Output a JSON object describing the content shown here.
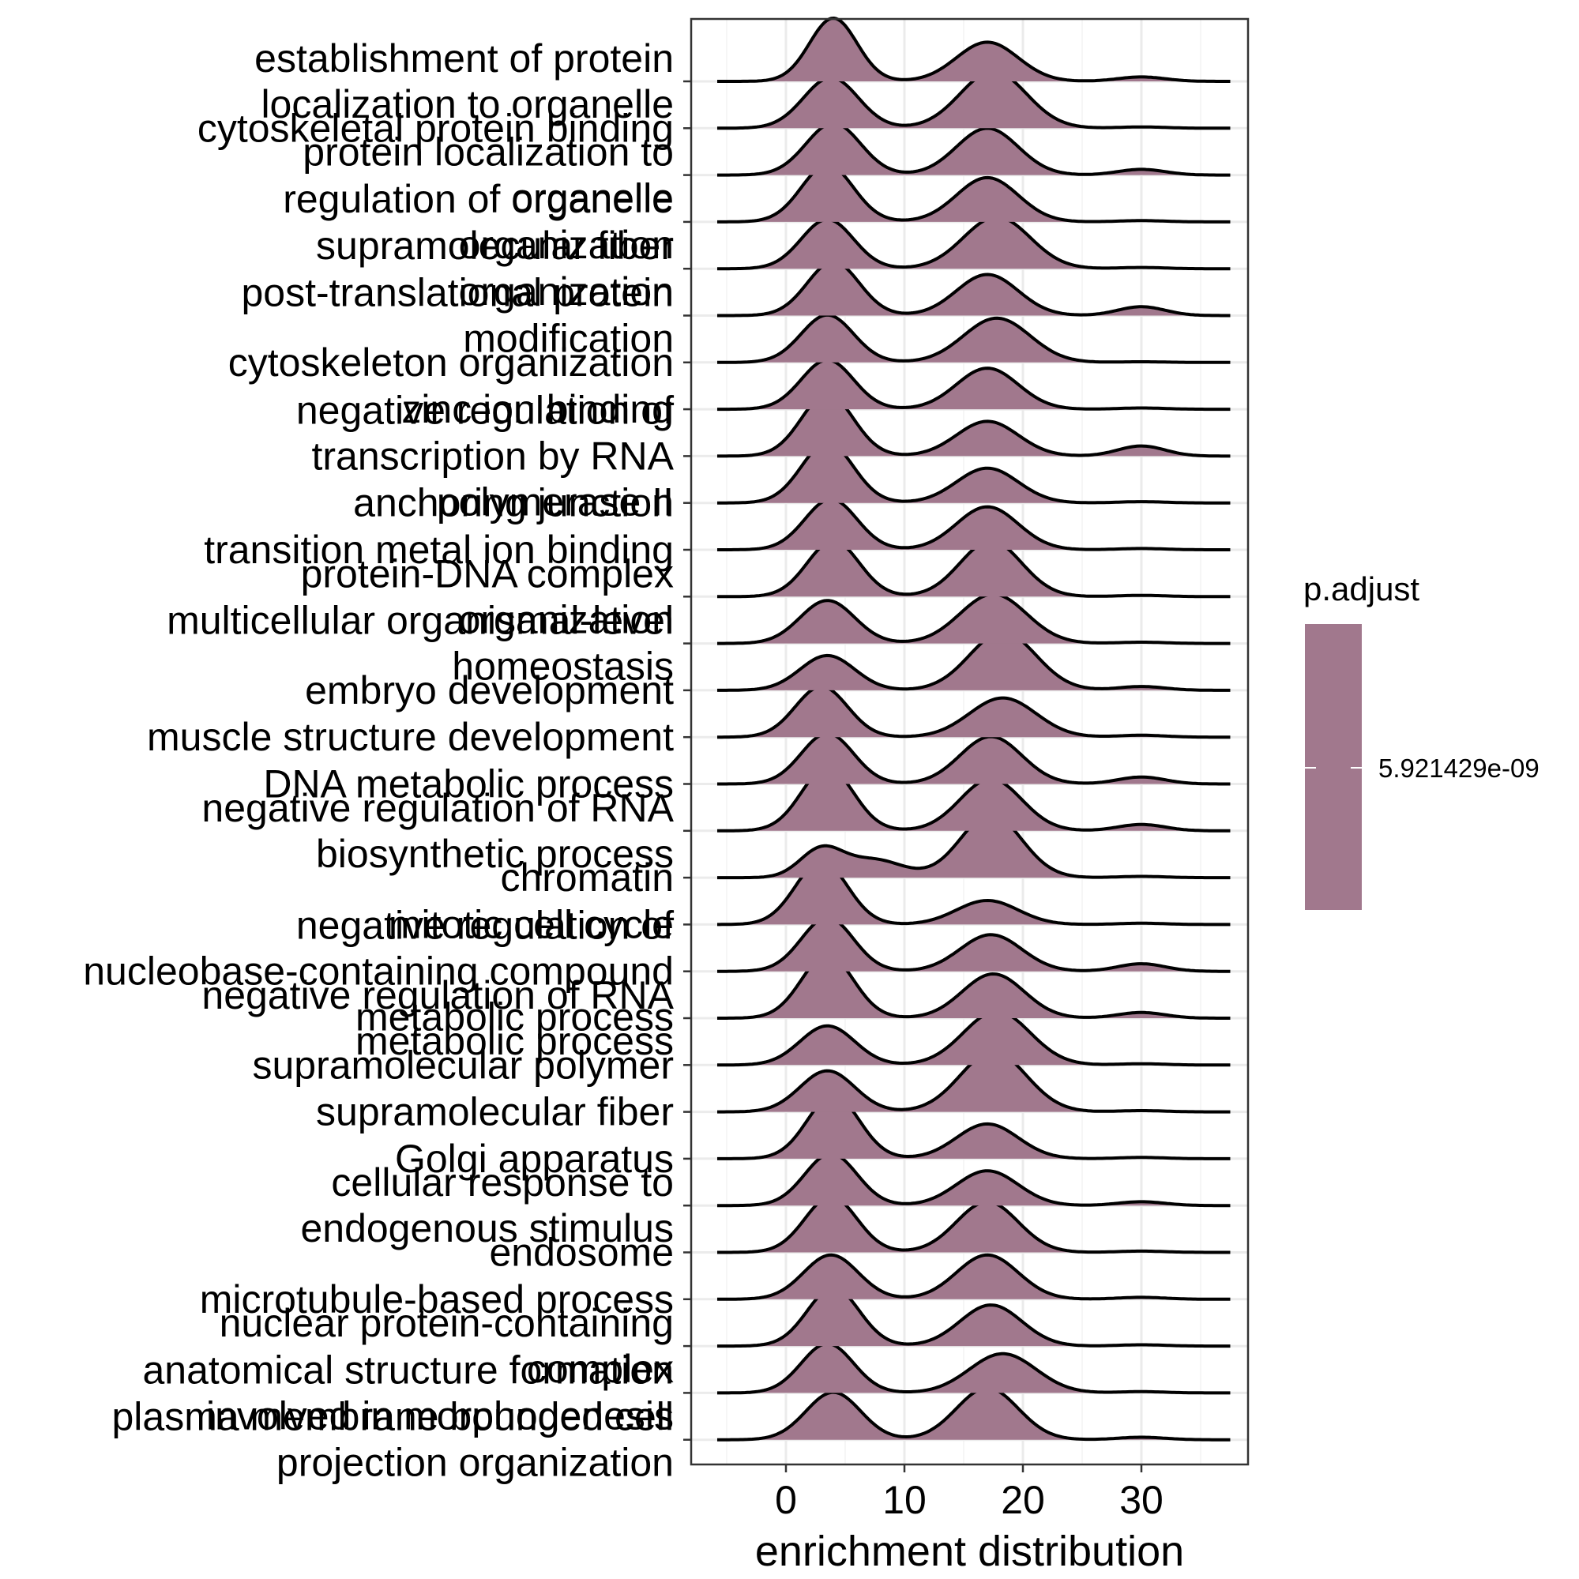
{
  "chart_data": {
    "type": "ridgeline",
    "title": "",
    "xlabel": "enrichment distribution",
    "ylabel": "",
    "xlim": [
      -8,
      39
    ],
    "xticks": [
      0,
      10,
      20,
      30
    ],
    "grid": true,
    "fill_color": "#a1788d",
    "categories": [
      "establishment of protein localization to organelle",
      "cytoskeletal protein binding",
      "protein localization to organelle",
      "regulation of organelle organization",
      "supramolecular fiber organization",
      "post-translational protein modification",
      "cytoskeleton organization",
      "zinc ion binding",
      "negative regulation of transcription by RNA polymerase II",
      "anchoring junction",
      "transition metal ion binding",
      "protein-DNA complex organization",
      "multicellular organismal-level homeostasis",
      "embryo development",
      "muscle structure development",
      "DNA metabolic process",
      "negative regulation of RNA biosynthetic process",
      "chromatin",
      "mitotic cell cycle",
      "negative regulation of nucleobase-containing compound metabolic process",
      "negative regulation of RNA metabolic process",
      "supramolecular polymer",
      "supramolecular fiber",
      "Golgi apparatus",
      "cellular response to endogenous stimulus",
      "endosome",
      "microtubule-based process",
      "nuclear protein-containing complex",
      "anatomical structure formation involved in morphogenesis",
      "plasma membrane bounded cell projection organization"
    ],
    "series": [
      {
        "peaks": [
          [
            4.0,
            2.0,
            1.0
          ],
          [
            17.0,
            2.6,
            0.62
          ],
          [
            30.0,
            2.0,
            0.07
          ]
        ]
      },
      {
        "peaks": [
          [
            3.8,
            2.3,
            0.8
          ],
          [
            17.5,
            2.8,
            0.9
          ],
          [
            30.0,
            2.0,
            0.02
          ]
        ]
      },
      {
        "peaks": [
          [
            4.0,
            2.3,
            0.82
          ],
          [
            17.0,
            2.6,
            0.74
          ],
          [
            30.0,
            2.0,
            0.09
          ]
        ]
      },
      {
        "peaks": [
          [
            3.5,
            2.2,
            0.9
          ],
          [
            17.0,
            2.6,
            0.7
          ],
          [
            30.0,
            2.0,
            0.02
          ]
        ]
      },
      {
        "peaks": [
          [
            3.5,
            2.2,
            0.78
          ],
          [
            17.8,
            2.8,
            0.82
          ],
          [
            30.0,
            2.0,
            0.02
          ]
        ]
      },
      {
        "peaks": [
          [
            4.0,
            2.2,
            0.85
          ],
          [
            17.0,
            2.6,
            0.65
          ],
          [
            30.0,
            2.0,
            0.14
          ]
        ]
      },
      {
        "peaks": [
          [
            3.5,
            2.2,
            0.75
          ],
          [
            17.8,
            2.8,
            0.7
          ],
          [
            30.0,
            2.0,
            0.01
          ]
        ]
      },
      {
        "peaks": [
          [
            3.5,
            2.2,
            0.78
          ],
          [
            17.0,
            2.6,
            0.65
          ],
          [
            30.0,
            2.0,
            0.02
          ]
        ]
      },
      {
        "peaks": [
          [
            3.5,
            2.2,
            0.98
          ],
          [
            17.0,
            2.6,
            0.55
          ],
          [
            30.0,
            2.0,
            0.16
          ]
        ]
      },
      {
        "peaks": [
          [
            3.5,
            2.2,
            0.95
          ],
          [
            17.0,
            2.6,
            0.55
          ],
          [
            30.0,
            2.0,
            0.02
          ]
        ]
      },
      {
        "peaks": [
          [
            3.8,
            2.2,
            0.8
          ],
          [
            17.0,
            2.6,
            0.68
          ],
          [
            30.0,
            2.0,
            0.02
          ]
        ]
      },
      {
        "peaks": [
          [
            4.0,
            2.2,
            0.88
          ],
          [
            17.3,
            2.6,
            0.88
          ],
          [
            30.0,
            2.0,
            0.02
          ]
        ]
      },
      {
        "peaks": [
          [
            3.5,
            2.3,
            0.68
          ],
          [
            17.5,
            2.8,
            0.78
          ],
          [
            30.0,
            2.0,
            0.02
          ]
        ]
      },
      {
        "peaks": [
          [
            3.5,
            2.3,
            0.55
          ],
          [
            18.3,
            2.8,
            0.92
          ],
          [
            30.0,
            2.0,
            0.06
          ]
        ]
      },
      {
        "peaks": [
          [
            3.0,
            2.2,
            0.8
          ],
          [
            18.3,
            2.8,
            0.62
          ],
          [
            30.0,
            2.0,
            0.03
          ]
        ]
      },
      {
        "peaks": [
          [
            3.5,
            2.2,
            0.8
          ],
          [
            17.3,
            2.6,
            0.75
          ],
          [
            30.0,
            2.0,
            0.11
          ]
        ]
      },
      {
        "peaks": [
          [
            3.5,
            2.2,
            1.0
          ],
          [
            17.3,
            2.6,
            0.82
          ],
          [
            30.0,
            2.0,
            0.1
          ]
        ]
      },
      {
        "peaks": [
          [
            3.0,
            1.8,
            0.45
          ],
          [
            7.5,
            2.4,
            0.28
          ],
          [
            17.3,
            2.6,
            1.0
          ],
          [
            30.0,
            2.0,
            0.02
          ]
        ]
      },
      {
        "peaks": [
          [
            3.0,
            2.2,
            1.0
          ],
          [
            17.0,
            2.6,
            0.38
          ],
          [
            30.0,
            2.0,
            0.02
          ]
        ]
      },
      {
        "peaks": [
          [
            3.5,
            2.2,
            0.85
          ],
          [
            17.3,
            2.6,
            0.58
          ],
          [
            30.0,
            2.0,
            0.12
          ]
        ]
      },
      {
        "peaks": [
          [
            3.5,
            2.2,
            1.0
          ],
          [
            17.5,
            2.6,
            0.7
          ],
          [
            30.0,
            2.0,
            0.09
          ]
        ]
      },
      {
        "peaks": [
          [
            3.5,
            2.3,
            0.62
          ],
          [
            17.8,
            2.8,
            0.85
          ],
          [
            30.0,
            2.0,
            0.02
          ]
        ]
      },
      {
        "peaks": [
          [
            3.5,
            2.3,
            0.65
          ],
          [
            17.5,
            2.8,
            0.95
          ],
          [
            30.0,
            2.0,
            0.02
          ]
        ]
      },
      {
        "peaks": [
          [
            4.0,
            2.2,
            1.0
          ],
          [
            17.0,
            2.6,
            0.55
          ],
          [
            30.0,
            2.0,
            0.02
          ]
        ]
      },
      {
        "peaks": [
          [
            3.8,
            2.2,
            0.82
          ],
          [
            17.0,
            2.6,
            0.55
          ],
          [
            30.0,
            2.0,
            0.06
          ]
        ]
      },
      {
        "peaks": [
          [
            3.8,
            2.2,
            0.88
          ],
          [
            17.0,
            2.6,
            0.8
          ],
          [
            30.0,
            2.0,
            0.02
          ]
        ]
      },
      {
        "peaks": [
          [
            3.8,
            2.3,
            0.7
          ],
          [
            17.0,
            2.6,
            0.7
          ],
          [
            30.0,
            2.0,
            0.03
          ]
        ]
      },
      {
        "peaks": [
          [
            4.0,
            2.2,
            0.92
          ],
          [
            17.3,
            2.6,
            0.65
          ],
          [
            30.0,
            2.0,
            0.02
          ]
        ]
      },
      {
        "peaks": [
          [
            3.5,
            2.2,
            0.78
          ],
          [
            18.3,
            2.8,
            0.62
          ],
          [
            30.0,
            2.0,
            0.02
          ]
        ]
      },
      {
        "peaks": [
          [
            4.0,
            2.3,
            0.75
          ],
          [
            17.0,
            2.6,
            0.82
          ],
          [
            30.0,
            2.0,
            0.04
          ]
        ]
      }
    ],
    "legend": {
      "title": "p.adjust",
      "label": "5.921429e-09",
      "color": "#a1788d",
      "position": "right"
    }
  }
}
